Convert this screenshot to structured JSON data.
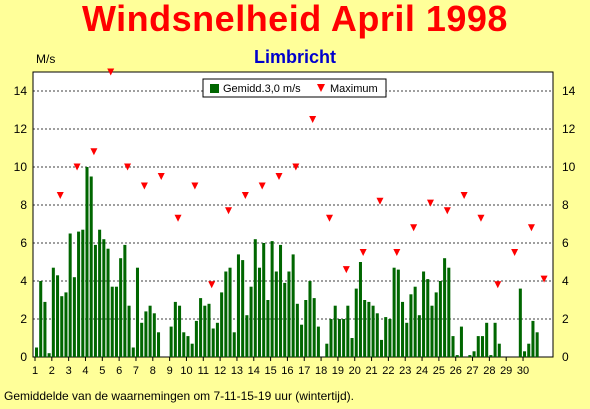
{
  "title": "Windsnelheid April 1998",
  "subtitle": "Limbricht",
  "unit_label": "M/s",
  "footnote": "Gemiddelde van de waarnemingen om 7-11-15-19 uur (wintertijd).",
  "colors": {
    "bar": "#006600",
    "marker": "#ff0000",
    "background": "#ffff99",
    "title": "#ff0000",
    "subtitle": "#0000cc"
  },
  "chart_data": {
    "type": "bar",
    "title": "Windsnelheid April 1998",
    "subtitle": "Limbricht",
    "ylabel": "M/s",
    "ylim": [
      0,
      15
    ],
    "yticks": [
      0,
      2,
      4,
      6,
      8,
      10,
      12,
      14
    ],
    "xticks": [
      "1",
      "2",
      "3",
      "4",
      "5",
      "6",
      "7",
      "8",
      "9",
      "10",
      "11",
      "12",
      "13",
      "14",
      "15",
      "16",
      "17",
      "18",
      "19",
      "20",
      "21",
      "22",
      "23",
      "24",
      "25",
      "26",
      "27",
      "28",
      "29",
      "30"
    ],
    "legend_position": "top-center",
    "grid": "horizontal dashed",
    "series": [
      {
        "name": "Gemidd.3,0 m/s",
        "kind": "bar",
        "values": [
          0.5,
          4.0,
          2.9,
          0.2,
          4.7,
          4.3,
          3.2,
          3.4,
          6.5,
          4.2,
          6.6,
          6.7,
          10.0,
          9.5,
          5.9,
          6.7,
          6.2,
          5.7,
          3.7,
          3.7,
          5.2,
          5.9,
          2.7,
          0.5,
          4.7,
          1.8,
          2.4,
          2.7,
          2.3,
          1.3,
          0,
          0,
          1.6,
          2.9,
          2.7,
          1.3,
          1.1,
          0.7,
          1.9,
          3.1,
          2.7,
          2.8,
          1.5,
          1.8,
          3.4,
          4.5,
          4.7,
          1.3,
          5.4,
          5.1,
          2.2,
          3.7,
          6.2,
          4.7,
          6.0,
          3.0,
          6.1,
          4.5,
          5.9,
          3.9,
          4.5,
          5.4,
          2.8,
          1.7,
          3.0,
          4.0,
          3.1,
          1.6,
          0,
          0.7,
          2.0,
          2.7,
          2.0,
          2.0,
          2.7,
          1.0,
          3.6,
          5.0,
          3.0,
          2.9,
          2.7,
          2.3,
          0.9,
          2.1,
          2.0,
          4.7,
          4.6,
          2.9,
          1.8,
          3.3,
          3.7,
          2.2,
          4.5,
          4.1,
          2.7,
          3.4,
          4.0,
          5.2,
          4.7,
          1.1,
          0.1,
          1.6,
          0,
          0.1,
          0.3,
          1.1,
          1.1,
          1.8,
          0.1,
          1.8,
          0.7,
          0,
          0,
          0,
          0,
          3.6,
          0.3,
          0.7,
          1.9,
          1.3
        ]
      },
      {
        "name": "Maximum",
        "kind": "marker",
        "x": [
          2,
          3,
          4,
          5,
          6,
          7,
          8,
          9,
          10,
          11,
          12,
          13,
          14,
          15,
          16,
          17,
          18,
          19,
          20,
          21,
          22,
          23,
          24,
          25,
          26,
          27,
          28,
          29,
          30
        ],
        "values": [
          8.5,
          10.0,
          10.8,
          15.0,
          10.0,
          9.0,
          9.5,
          7.3,
          9.0,
          3.8,
          7.7,
          8.5,
          9.0,
          9.5,
          10.0,
          12.5,
          7.3,
          4.6,
          5.5,
          8.2,
          5.5,
          6.8,
          8.1,
          7.7,
          8.5,
          7.3,
          3.8,
          5.5,
          6.8
        ]
      }
    ],
    "extra_marker": {
      "x": 30.75,
      "value": 4.1
    }
  }
}
